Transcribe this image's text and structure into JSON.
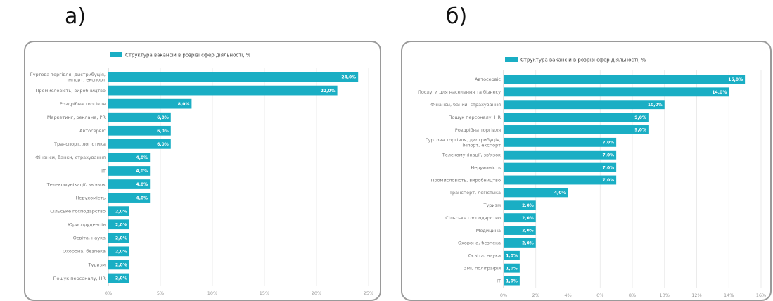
{
  "panels": [
    {
      "letter": "а)"
    },
    {
      "letter": "б)"
    }
  ],
  "colors": {
    "bar": "#1aaec4",
    "grid": "#e6e6e6",
    "axis": "#bbbbbb"
  },
  "chart_data": [
    {
      "type": "bar",
      "orientation": "horizontal",
      "legend": "Структура вакансій в розрізі сфер діяльності, %",
      "legend_position": "top",
      "xlim": [
        0,
        25
      ],
      "xticks": [
        "0%",
        "5%",
        "10%",
        "15%",
        "20%",
        "25%"
      ],
      "categories": [
        [
          "Гуртова торгівля, дистрибуція,",
          "імпорт, експорт"
        ],
        [
          "Промисловість, виробництво"
        ],
        [
          "Роздрібна торгівля"
        ],
        [
          "Маркетинг, реклама, PR"
        ],
        [
          "Автосервіс"
        ],
        [
          "Транспорт, логістика"
        ],
        [
          "Фінанси, банки, страхування"
        ],
        [
          "IT"
        ],
        [
          "Телекомунікації, зв'язок"
        ],
        [
          "Нерухомість"
        ],
        [
          "Сільське господарство"
        ],
        [
          "Юриспруденція"
        ],
        [
          "Освіта, наука"
        ],
        [
          "Охорона, безпека"
        ],
        [
          "Туризм"
        ],
        [
          "Пошук персоналу, HR"
        ]
      ],
      "values": [
        24.0,
        22.0,
        8.0,
        6.0,
        6.0,
        6.0,
        4.0,
        4.0,
        4.0,
        4.0,
        2.0,
        2.0,
        2.0,
        2.0,
        2.0,
        2.0
      ],
      "value_labels": [
        "24,0%",
        "22,0%",
        "8,0%",
        "6,0%",
        "6,0%",
        "6,0%",
        "4,0%",
        "4,0%",
        "4,0%",
        "4,0%",
        "2,0%",
        "2,0%",
        "2,0%",
        "2,0%",
        "2,0%",
        "2,0%"
      ],
      "grid": true
    },
    {
      "type": "bar",
      "orientation": "horizontal",
      "legend": "Структура вакансій в розрізі сфер діяльності, %",
      "legend_position": "top",
      "xlim": [
        0,
        16
      ],
      "xticks": [
        "0%",
        "2%",
        "4%",
        "6%",
        "8%",
        "10%",
        "12%",
        "14%",
        "16%"
      ],
      "categories": [
        [
          "Автосервіс"
        ],
        [
          "Послуги для населення та бізнесу"
        ],
        [
          "Фінанси, банки, страхування"
        ],
        [
          "Пошук персоналу, HR"
        ],
        [
          "Роздрібна торгівля"
        ],
        [
          "Гуртова торгівля, дистрибуція,",
          "імпорт, експорт"
        ],
        [
          "Телекомунікації, зв'язок"
        ],
        [
          "Нерухомість"
        ],
        [
          "Промисловість, виробництво"
        ],
        [
          "Транспорт, логістика"
        ],
        [
          "Туризм"
        ],
        [
          "Сільське господарство"
        ],
        [
          "Медицина"
        ],
        [
          "Охорона, безпека"
        ],
        [
          "Освіта, наука"
        ],
        [
          "ЗМІ, поліграфія"
        ],
        [
          "IT"
        ]
      ],
      "values": [
        15.0,
        14.0,
        10.0,
        9.0,
        9.0,
        7.0,
        7.0,
        7.0,
        7.0,
        4.0,
        2.0,
        2.0,
        2.0,
        2.0,
        1.0,
        1.0,
        1.0
      ],
      "value_labels": [
        "15,0%",
        "14,0%",
        "10,0%",
        "9,0%",
        "9,0%",
        "7,0%",
        "7,0%",
        "7,0%",
        "7,0%",
        "4,0%",
        "2,0%",
        "2,0%",
        "2,0%",
        "2,0%",
        "1,0%",
        "1,0%",
        "1,0%"
      ],
      "grid": true
    }
  ]
}
